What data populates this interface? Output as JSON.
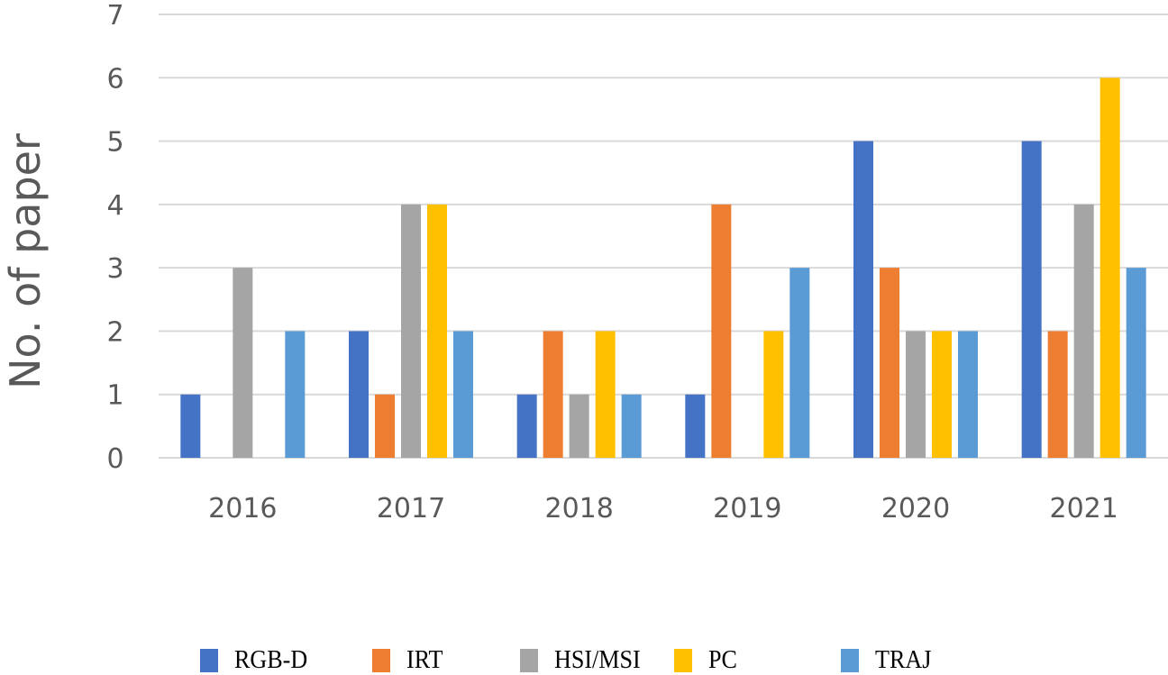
{
  "chart_data": {
    "type": "bar",
    "title": "",
    "xlabel": "",
    "ylabel": "No. of paper",
    "ylim": [
      0,
      7
    ],
    "yticks": [
      "0",
      "1",
      "2",
      "3",
      "4",
      "5",
      "6",
      "7"
    ],
    "grid": true,
    "legend_position": "bottom",
    "categories": [
      "2016",
      "2017",
      "2018",
      "2019",
      "2020",
      "2021"
    ],
    "series": [
      {
        "name": "RGB-D",
        "color": "#4472C4",
        "values": [
          1,
          2,
          1,
          1,
          5,
          5
        ]
      },
      {
        "name": "IRT",
        "color": "#ED7D31",
        "values": [
          0,
          1,
          2,
          4,
          3,
          2
        ]
      },
      {
        "name": "HSI/MSI",
        "color": "#A5A5A5",
        "values": [
          3,
          4,
          1,
          0,
          2,
          4
        ]
      },
      {
        "name": "PC",
        "color": "#FFC000",
        "values": [
          0,
          4,
          2,
          2,
          2,
          6
        ]
      },
      {
        "name": "TRAJ",
        "color": "#5B9BD5",
        "values": [
          2,
          2,
          1,
          3,
          2,
          3
        ]
      }
    ]
  }
}
